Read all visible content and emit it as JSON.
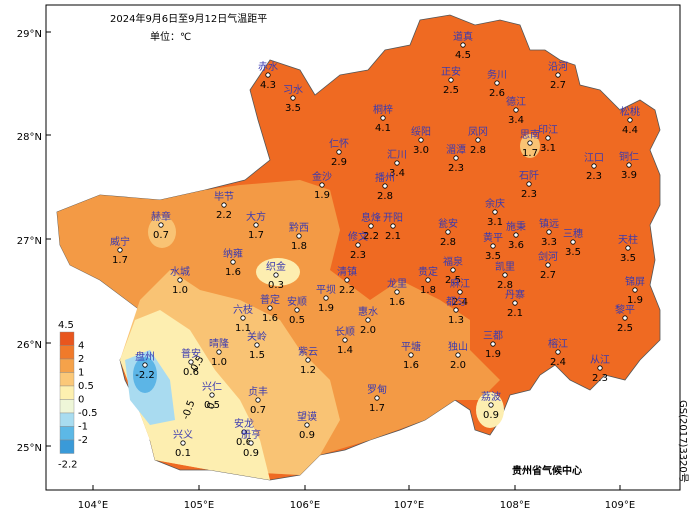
{
  "title": "2024年9月6日至9月12日气温距平",
  "unit": "单位：℃",
  "stations": [
    {
      "name": "道真",
      "value": "4.5"
    },
    {
      "name": "正安",
      "value": "2.5"
    },
    {
      "name": "务川",
      "value": "2.6"
    },
    {
      "name": "沿河",
      "value": "2.7"
    },
    {
      "name": "赤水",
      "value": "4.3"
    },
    {
      "name": "习水",
      "value": "3.5"
    },
    {
      "name": "德江",
      "value": "3.4"
    },
    {
      "name": "松桃",
      "value": "4.4"
    },
    {
      "name": "桐梓",
      "value": "4.1"
    },
    {
      "name": "绥阳",
      "value": "3.0"
    },
    {
      "name": "凤冈",
      "value": "2.8"
    },
    {
      "name": "印江",
      "value": "3.1"
    },
    {
      "name": "思南",
      "value": "1.7"
    },
    {
      "name": "仁怀",
      "value": "2.9"
    },
    {
      "name": "汇川",
      "value": "3.4"
    },
    {
      "name": "湄潭",
      "value": "2.3"
    },
    {
      "name": "江口",
      "value": "2.3"
    },
    {
      "name": "铜仁",
      "value": "3.9"
    },
    {
      "name": "石阡",
      "value": "2.3"
    },
    {
      "name": "播州",
      "value": "2.8"
    },
    {
      "name": "金沙",
      "value": "1.9"
    },
    {
      "name": "毕节",
      "value": "2.2"
    },
    {
      "name": "大方",
      "value": "1.7"
    },
    {
      "name": "黔西",
      "value": "1.8"
    },
    {
      "name": "息烽",
      "value": "2.2"
    },
    {
      "name": "开阳",
      "value": "2.1"
    },
    {
      "name": "余庆",
      "value": "3.1"
    },
    {
      "name": "瓮安",
      "value": "2.8"
    },
    {
      "name": "施秉",
      "value": "3.6"
    },
    {
      "name": "镇远",
      "value": "3.3"
    },
    {
      "name": "三穗",
      "value": "3.5"
    },
    {
      "name": "天柱",
      "value": "3.5"
    },
    {
      "name": "黄平",
      "value": "3.5"
    },
    {
      "name": "修文",
      "value": "2.3"
    },
    {
      "name": "赫章",
      "value": "0.7"
    },
    {
      "name": "威宁",
      "value": "1.7"
    },
    {
      "name": "纳雍",
      "value": "1.6"
    },
    {
      "name": "织金",
      "value": "0.3"
    },
    {
      "name": "清镇",
      "value": "2.2"
    },
    {
      "name": "龙里",
      "value": "1.6"
    },
    {
      "name": "贵定",
      "value": "1.8"
    },
    {
      "name": "福泉",
      "value": "2.5"
    },
    {
      "name": "凯里",
      "value": "2.8"
    },
    {
      "name": "剑河",
      "value": "2.7"
    },
    {
      "name": "麻江",
      "value": "2.4"
    },
    {
      "name": "丹寨",
      "value": "2.1"
    },
    {
      "name": "锦屏",
      "value": "1.9"
    },
    {
      "name": "黎平",
      "value": "2.5"
    },
    {
      "name": "都匀",
      "value": "1.3"
    },
    {
      "name": "三都",
      "value": "1.9"
    },
    {
      "name": "榕江",
      "value": "2.4"
    },
    {
      "name": "从江",
      "value": "2.3"
    },
    {
      "name": "平塘",
      "value": "1.6"
    },
    {
      "name": "独山",
      "value": "2.0"
    },
    {
      "name": "荔波",
      "value": "0.9"
    },
    {
      "name": "罗甸",
      "value": "1.7"
    },
    {
      "name": "长顺",
      "value": "1.4"
    },
    {
      "name": "惠水",
      "value": "2.0"
    },
    {
      "name": "平坝",
      "value": "1.9"
    },
    {
      "name": "安顺",
      "value": "0.5"
    },
    {
      "name": "普定",
      "value": "1.6"
    },
    {
      "name": "六枝",
      "value": "1.1"
    },
    {
      "name": "关岭",
      "value": "1.5"
    },
    {
      "name": "水城",
      "value": "1.0"
    },
    {
      "name": "盘州",
      "value": "-2.2"
    },
    {
      "name": "普安",
      "value": "0.6"
    },
    {
      "name": "晴隆",
      "value": "1.0"
    },
    {
      "name": "紫云",
      "value": "1.2"
    },
    {
      "name": "兴仁",
      "value": "0.5"
    },
    {
      "name": "贞丰",
      "value": "0.7"
    },
    {
      "name": "安龙",
      "value": "0.6"
    },
    {
      "name": "兴义",
      "value": "0.1"
    },
    {
      "name": "册亨",
      "value": "0.9"
    },
    {
      "name": "望谟",
      "value": "0.9"
    }
  ],
  "x_ticks": [
    "104°E",
    "105°E",
    "106°E",
    "107°E",
    "108°E",
    "109°E"
  ],
  "y_ticks": [
    "29°N",
    "28°N",
    "27°N",
    "26°N",
    "25°N"
  ],
  "legend": {
    "max": "4.5",
    "labels": [
      "4",
      "2",
      "1",
      "0.5",
      "0",
      "-0.5",
      "-1",
      "-2"
    ],
    "min": "-2.2"
  },
  "contour_labels": [
    "-0.5",
    "0",
    "0.5"
  ],
  "credit": "贵州省气候中心",
  "map_number": "GS(2017)3320号"
}
